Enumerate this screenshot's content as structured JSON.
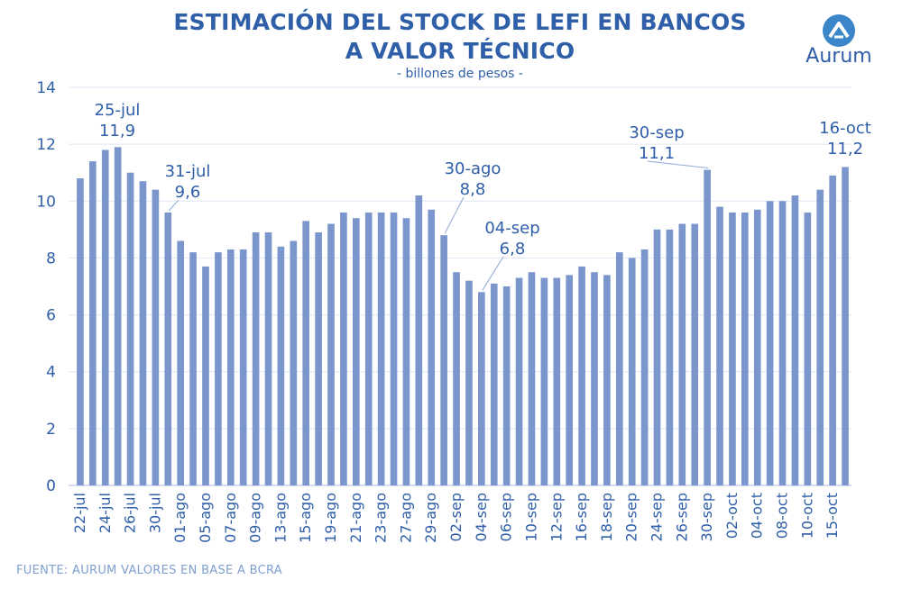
{
  "chart_data": {
    "type": "bar",
    "title_line1": "ESTIMACIÓN DEL STOCK DE LEFI EN BANCOS",
    "title_line2": "A VALOR TÉCNICO",
    "subtitle": "- billones de pesos -",
    "source": "FUENTE: AURUM VALORES EN BASE A BCRA",
    "ylim": [
      0,
      14
    ],
    "yticks": [
      0,
      2,
      4,
      6,
      8,
      10,
      12,
      14
    ],
    "grid": true,
    "bar_color": "#7b96cc",
    "text_color": "#2f5fa8",
    "values": [
      10.8,
      11.4,
      11.8,
      11.9,
      11.0,
      10.7,
      10.4,
      9.6,
      8.6,
      8.2,
      7.7,
      8.2,
      8.3,
      8.3,
      8.9,
      8.9,
      8.4,
      8.6,
      9.3,
      8.9,
      9.2,
      9.6,
      9.4,
      9.6,
      9.6,
      9.6,
      9.4,
      10.2,
      9.7,
      8.8,
      7.5,
      7.2,
      6.8,
      7.1,
      7.0,
      7.3,
      7.5,
      7.3,
      7.3,
      7.4,
      7.7,
      7.5,
      7.4,
      8.2,
      8.0,
      8.3,
      9.0,
      9.0,
      9.2,
      9.2,
      11.1,
      9.8,
      9.6,
      9.6,
      9.7,
      10.0,
      10.0,
      10.2,
      9.6,
      10.4,
      10.9,
      11.2
    ],
    "xtick_labels": [
      {
        "index": 0,
        "label": "22-jul"
      },
      {
        "index": 2,
        "label": "24-jul"
      },
      {
        "index": 4,
        "label": "26-jul"
      },
      {
        "index": 6,
        "label": "30-jul"
      },
      {
        "index": 8,
        "label": "01-ago"
      },
      {
        "index": 10,
        "label": "05-ago"
      },
      {
        "index": 12,
        "label": "07-ago"
      },
      {
        "index": 14,
        "label": "09-ago"
      },
      {
        "index": 16,
        "label": "13-ago"
      },
      {
        "index": 18,
        "label": "15-ago"
      },
      {
        "index": 20,
        "label": "19-ago"
      },
      {
        "index": 22,
        "label": "21-ago"
      },
      {
        "index": 24,
        "label": "23-ago"
      },
      {
        "index": 26,
        "label": "27-ago"
      },
      {
        "index": 28,
        "label": "29-ago"
      },
      {
        "index": 30,
        "label": "02-sep"
      },
      {
        "index": 32,
        "label": "04-sep"
      },
      {
        "index": 34,
        "label": "06-sep"
      },
      {
        "index": 36,
        "label": "10-sep"
      },
      {
        "index": 38,
        "label": "12-sep"
      },
      {
        "index": 40,
        "label": "16-sep"
      },
      {
        "index": 42,
        "label": "18-sep"
      },
      {
        "index": 44,
        "label": "20-sep"
      },
      {
        "index": 46,
        "label": "24-sep"
      },
      {
        "index": 48,
        "label": "26-sep"
      },
      {
        "index": 50,
        "label": "30-sep"
      },
      {
        "index": 52,
        "label": "02-oct"
      },
      {
        "index": 54,
        "label": "04-oct"
      },
      {
        "index": 56,
        "label": "08-oct"
      },
      {
        "index": 58,
        "label": "10-oct"
      },
      {
        "index": 60,
        "label": "15-oct"
      }
    ],
    "annotations": [
      {
        "index": 3,
        "date": "25-jul",
        "value_label": "11,9"
      },
      {
        "index": 7,
        "date": "31-jul",
        "value_label": "9,6"
      },
      {
        "index": 29,
        "date": "30-ago",
        "value_label": "8,8"
      },
      {
        "index": 32,
        "date": "04-sep",
        "value_label": "6,8"
      },
      {
        "index": 50,
        "date": "30-sep",
        "value_label": "11,1"
      },
      {
        "index": 61,
        "date": "16-oct",
        "value_label": "11,2"
      }
    ]
  },
  "logo": {
    "text": "Aurum",
    "color": "#3a86c8"
  }
}
